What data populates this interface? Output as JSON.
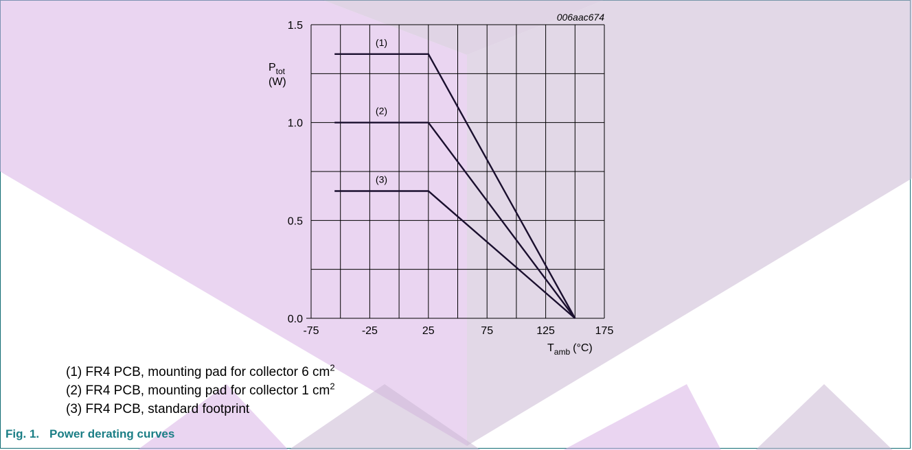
{
  "chart_data": {
    "type": "line",
    "figure_code": "006aac674",
    "ylabel": {
      "main": "P",
      "sub": "tot",
      "unit": "(W)"
    },
    "xlabel": {
      "main": "T",
      "sub": "amb",
      "unit": "(°C)"
    },
    "xlim": [
      -75,
      175
    ],
    "ylim": [
      0,
      1.5
    ],
    "x_ticks": [
      "-75",
      "-25",
      "25",
      "75",
      "125",
      "175"
    ],
    "y_ticks": [
      "0.0",
      "0.5",
      "1.0",
      "1.5"
    ],
    "grid": true,
    "series": [
      {
        "name": "(1)",
        "points": [
          [
            -55,
            1.35
          ],
          [
            25,
            1.35
          ],
          [
            150,
            0
          ]
        ]
      },
      {
        "name": "(2)",
        "points": [
          [
            -55,
            1.0
          ],
          [
            25,
            1.0
          ],
          [
            150,
            0
          ]
        ]
      },
      {
        "name": "(3)",
        "points": [
          [
            -55,
            0.65
          ],
          [
            25,
            0.65
          ],
          [
            150,
            0
          ]
        ]
      }
    ]
  },
  "notes": [
    {
      "text": "(1) FR4 PCB, mounting pad for collector 6 cm",
      "sup": "2"
    },
    {
      "text": "(2) FR4 PCB, mounting pad for collector 1 cm",
      "sup": "2"
    },
    {
      "text": "(3) FR4 PCB, standard footprint",
      "sup": ""
    }
  ],
  "caption": {
    "number": "Fig. 1.",
    "title": "Power derating curves"
  },
  "colors": {
    "accent": "#1a7e85",
    "line": "#1a0f2e",
    "watermark_purple": "#d9b3e6",
    "watermark_mauve": "#cbb8d3"
  }
}
